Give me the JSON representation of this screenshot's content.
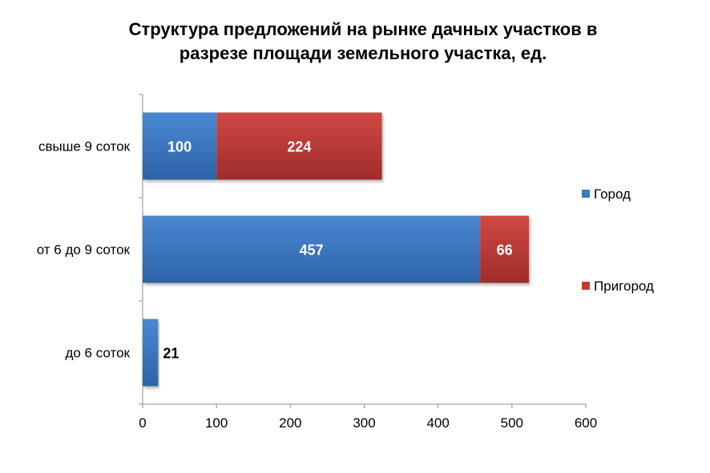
{
  "chart_data": {
    "type": "bar",
    "orientation": "horizontal",
    "stacked": true,
    "title_lines": [
      "Структура  предложений на рынке дачных участков в",
      "разрезе площади земельного участка,  ед."
    ],
    "categories": [
      "свыше 9 соток",
      "от 6 до 9 соток",
      "до 6 соток"
    ],
    "series": [
      {
        "name": "Город",
        "values": [
          100,
          457,
          21
        ],
        "color": "#3a78c3"
      },
      {
        "name": "Пригород",
        "values": [
          224,
          66,
          null
        ],
        "color": "#c23a37"
      }
    ],
    "xlim": [
      0,
      600
    ],
    "xticks": [
      "0",
      "100",
      "200",
      "300",
      "400",
      "500",
      "600"
    ],
    "data_labels": true,
    "grid": false,
    "legend": "right"
  }
}
